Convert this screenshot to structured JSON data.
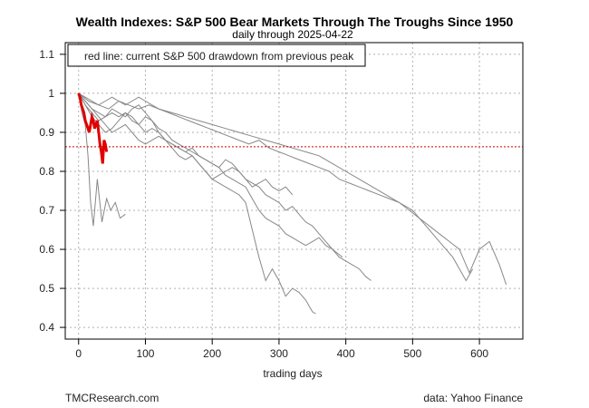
{
  "chart_data": {
    "type": "line",
    "title": "Wealth Indexes: S&P 500 Bear Markets Through The Troughs Since 1950",
    "subtitle": "daily through 2025-04-22",
    "xlabel": "trading days",
    "ylabel": "",
    "xlim": [
      -20,
      665
    ],
    "ylim": [
      0.37,
      1.13
    ],
    "xticks": [
      0,
      100,
      200,
      300,
      400,
      500,
      600
    ],
    "yticks": [
      0.4,
      0.5,
      0.6,
      0.7,
      0.8,
      0.9,
      1.0,
      1.1
    ],
    "ytick_labels": [
      "0.4",
      "0.5",
      "0.6",
      "0.7",
      "0.8",
      "0.9",
      "1",
      "1.1"
    ],
    "grid": true,
    "legend": {
      "placement": "top-left",
      "text": "red line: current S&P 500 drawdown from previous peak"
    },
    "hline": {
      "y": 0.863,
      "color": "#cc0000",
      "style": "dotted"
    },
    "series_color": "#888888",
    "current_color": "#e00000",
    "series": [
      {
        "x": [
          0,
          5,
          10,
          14,
          18,
          22,
          28,
          35,
          42,
          48,
          55,
          62,
          70
        ],
        "y": [
          1.0,
          0.95,
          0.92,
          0.84,
          0.72,
          0.66,
          0.78,
          0.67,
          0.73,
          0.7,
          0.72,
          0.68,
          0.69
        ]
      },
      {
        "x": [
          0,
          10,
          20,
          30,
          40,
          50,
          60,
          70,
          80,
          90,
          100,
          110,
          120,
          130,
          140,
          150,
          160,
          170,
          180,
          190,
          200,
          210,
          220,
          230,
          240,
          250,
          260,
          270,
          280,
          290,
          300,
          310,
          320,
          330,
          340,
          350,
          355
        ],
        "y": [
          1.0,
          0.98,
          0.96,
          0.95,
          0.94,
          0.96,
          0.95,
          0.94,
          0.96,
          0.97,
          0.95,
          0.93,
          0.9,
          0.88,
          0.87,
          0.86,
          0.85,
          0.84,
          0.82,
          0.8,
          0.78,
          0.77,
          0.76,
          0.75,
          0.74,
          0.72,
          0.65,
          0.58,
          0.52,
          0.55,
          0.52,
          0.48,
          0.5,
          0.49,
          0.47,
          0.44,
          0.435
        ]
      },
      {
        "x": [
          0,
          10,
          20,
          30,
          40,
          50,
          60,
          70,
          80,
          90,
          100,
          110,
          120,
          130,
          140,
          150,
          160,
          170,
          180,
          190,
          200,
          210,
          220,
          230,
          240,
          250,
          260,
          270,
          280,
          290,
          300,
          310,
          320,
          330,
          340,
          350,
          360,
          370,
          380,
          390,
          400,
          410,
          420,
          430,
          438
        ],
        "y": [
          1.0,
          0.97,
          0.95,
          0.93,
          0.94,
          0.95,
          0.94,
          0.95,
          0.93,
          0.92,
          0.94,
          0.93,
          0.91,
          0.9,
          0.88,
          0.87,
          0.86,
          0.85,
          0.84,
          0.83,
          0.82,
          0.81,
          0.79,
          0.78,
          0.77,
          0.76,
          0.73,
          0.7,
          0.68,
          0.67,
          0.66,
          0.64,
          0.63,
          0.62,
          0.61,
          0.62,
          0.63,
          0.61,
          0.6,
          0.58,
          0.57,
          0.56,
          0.55,
          0.53,
          0.52
        ]
      },
      {
        "x": [
          0,
          15,
          30,
          45,
          60,
          75,
          90,
          105,
          120,
          135,
          150,
          165,
          180,
          195,
          210,
          225,
          240,
          255,
          270,
          285,
          300,
          315,
          330,
          345,
          360,
          375,
          390,
          405,
          420,
          435,
          450,
          465,
          480,
          495,
          510,
          525,
          540,
          555,
          570,
          585,
          600,
          615,
          630,
          640
        ],
        "y": [
          1.0,
          0.98,
          0.97,
          0.96,
          0.98,
          0.97,
          0.96,
          0.97,
          0.96,
          0.95,
          0.94,
          0.93,
          0.92,
          0.91,
          0.9,
          0.89,
          0.88,
          0.87,
          0.88,
          0.86,
          0.85,
          0.84,
          0.83,
          0.82,
          0.81,
          0.8,
          0.78,
          0.77,
          0.76,
          0.75,
          0.74,
          0.73,
          0.72,
          0.7,
          0.68,
          0.66,
          0.64,
          0.62,
          0.6,
          0.54,
          0.6,
          0.62,
          0.56,
          0.51
        ]
      },
      {
        "x": [
          0,
          10,
          20,
          30,
          40,
          50,
          60,
          70,
          80,
          90,
          100,
          110,
          120,
          140,
          160,
          180,
          200,
          220,
          240,
          260,
          280,
          300,
          320,
          340,
          360,
          380,
          400,
          420,
          440,
          460,
          480,
          500,
          520,
          540,
          560,
          580,
          590
        ],
        "y": [
          1.0,
          0.99,
          0.98,
          0.97,
          0.98,
          0.99,
          0.98,
          0.97,
          0.98,
          0.99,
          0.98,
          0.97,
          0.96,
          0.95,
          0.94,
          0.93,
          0.92,
          0.91,
          0.9,
          0.89,
          0.88,
          0.87,
          0.86,
          0.85,
          0.84,
          0.82,
          0.8,
          0.78,
          0.76,
          0.74,
          0.72,
          0.7,
          0.66,
          0.62,
          0.58,
          0.52,
          0.55
        ]
      },
      {
        "x": [
          0,
          10,
          20,
          30,
          40,
          50,
          60,
          70,
          80,
          90,
          100,
          110,
          120,
          130,
          140,
          150,
          160,
          170,
          180,
          190,
          200,
          210,
          220,
          230,
          240,
          250,
          260,
          270,
          280,
          290,
          300,
          310,
          320,
          330,
          340,
          350,
          360,
          370,
          380,
          395
        ],
        "y": [
          1.0,
          0.98,
          0.96,
          0.94,
          0.92,
          0.9,
          0.91,
          0.92,
          0.9,
          0.88,
          0.87,
          0.88,
          0.89,
          0.88,
          0.87,
          0.86,
          0.85,
          0.86,
          0.84,
          0.83,
          0.82,
          0.81,
          0.83,
          0.82,
          0.8,
          0.78,
          0.77,
          0.76,
          0.74,
          0.73,
          0.72,
          0.7,
          0.71,
          0.69,
          0.67,
          0.66,
          0.64,
          0.62,
          0.6,
          0.58
        ]
      },
      {
        "x": [
          0,
          10,
          20,
          30,
          40,
          50,
          60,
          70,
          80,
          90,
          100,
          110,
          120,
          130,
          140,
          150,
          160,
          170,
          180,
          190,
          200,
          210,
          220,
          230,
          240,
          250,
          260,
          270,
          280,
          290,
          300,
          310,
          320
        ],
        "y": [
          1.0,
          0.97,
          0.94,
          0.92,
          0.9,
          0.91,
          0.93,
          0.95,
          0.94,
          0.92,
          0.9,
          0.91,
          0.9,
          0.88,
          0.86,
          0.84,
          0.83,
          0.84,
          0.82,
          0.8,
          0.78,
          0.79,
          0.8,
          0.81,
          0.8,
          0.78,
          0.76,
          0.77,
          0.78,
          0.76,
          0.75,
          0.76,
          0.74
        ]
      }
    ],
    "current": {
      "x": [
        0,
        2,
        4,
        6,
        8,
        10,
        12,
        14,
        16,
        18,
        20,
        22,
        24,
        26,
        28,
        30,
        32,
        34,
        36,
        38,
        40,
        42
      ],
      "y": [
        1.0,
        0.99,
        0.97,
        0.96,
        0.95,
        0.93,
        0.92,
        0.91,
        0.9,
        0.92,
        0.94,
        0.93,
        0.91,
        0.92,
        0.93,
        0.9,
        0.87,
        0.85,
        0.82,
        0.88,
        0.87,
        0.85
      ]
    }
  },
  "footer": {
    "left": "TMCResearch.com",
    "right": "data: Yahoo Finance"
  }
}
